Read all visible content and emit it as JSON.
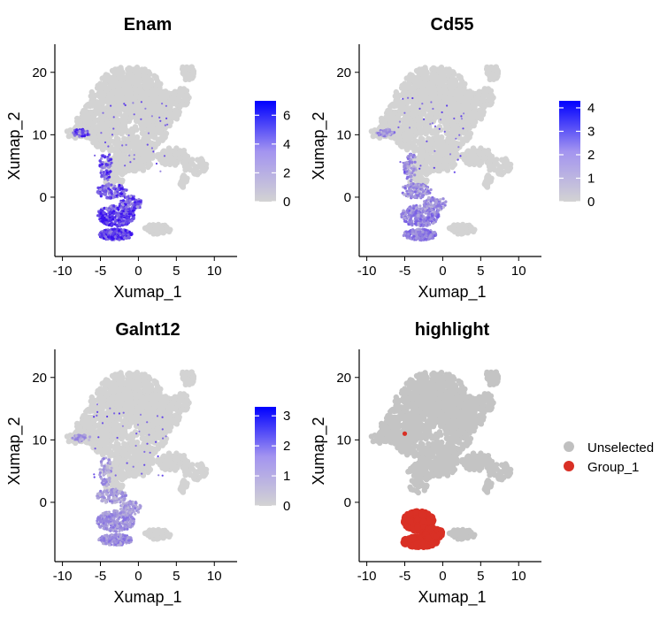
{
  "chart_data": [
    {
      "type": "scatter",
      "title": "Enam",
      "xlabel": "Xumap_1",
      "ylabel": "Xumap_2",
      "xlim": [
        -11,
        13
      ],
      "ylim": [
        -9.5,
        24.5
      ],
      "xticks": [
        -10,
        -5,
        0,
        5,
        10
      ],
      "yticks": [
        0,
        10,
        20
      ],
      "colorbar": {
        "min": 0,
        "max": 7,
        "ticks": [
          0,
          2,
          4,
          6
        ],
        "low_color": "#d3d3d3",
        "high_color": "#0000ff"
      },
      "expression_level": 1.0
    },
    {
      "type": "scatter",
      "title": "Cd55",
      "xlabel": "Xumap_1",
      "ylabel": "Xumap_2",
      "xlim": [
        -11,
        13
      ],
      "ylim": [
        -9.5,
        24.5
      ],
      "xticks": [
        -10,
        -5,
        0,
        5,
        10
      ],
      "yticks": [
        0,
        10,
        20
      ],
      "colorbar": {
        "min": 0,
        "max": 4.3,
        "ticks": [
          0,
          1,
          2,
          3,
          4
        ],
        "low_color": "#d3d3d3",
        "high_color": "#0000ff"
      },
      "expression_level": 0.55
    },
    {
      "type": "scatter",
      "title": "Galnt12",
      "xlabel": "Xumap_1",
      "ylabel": "Xumap_2",
      "xlim": [
        -11,
        13
      ],
      "ylim": [
        -9.5,
        24.5
      ],
      "xticks": [
        -10,
        -5,
        0,
        5,
        10
      ],
      "yticks": [
        0,
        10,
        20
      ],
      "colorbar": {
        "min": 0,
        "max": 3.3,
        "ticks": [
          0,
          1,
          2,
          3
        ],
        "low_color": "#d3d3d3",
        "high_color": "#0000ff"
      },
      "expression_level": 0.45
    },
    {
      "type": "scatter",
      "title": "highlight",
      "xlabel": "Xumap_1",
      "ylabel": "Xumap_2",
      "xlim": [
        -11,
        13
      ],
      "ylim": [
        -9.5,
        24.5
      ],
      "xticks": [
        -10,
        -5,
        0,
        5,
        10
      ],
      "yticks": [
        0,
        10,
        20
      ],
      "legend": {
        "placement": "right",
        "entries": [
          {
            "label": "Unselected",
            "color": "#c0c0c0"
          },
          {
            "label": "Group_1",
            "color": "#d93025"
          }
        ]
      },
      "group_1_outlier": [
        -5,
        11
      ]
    }
  ]
}
